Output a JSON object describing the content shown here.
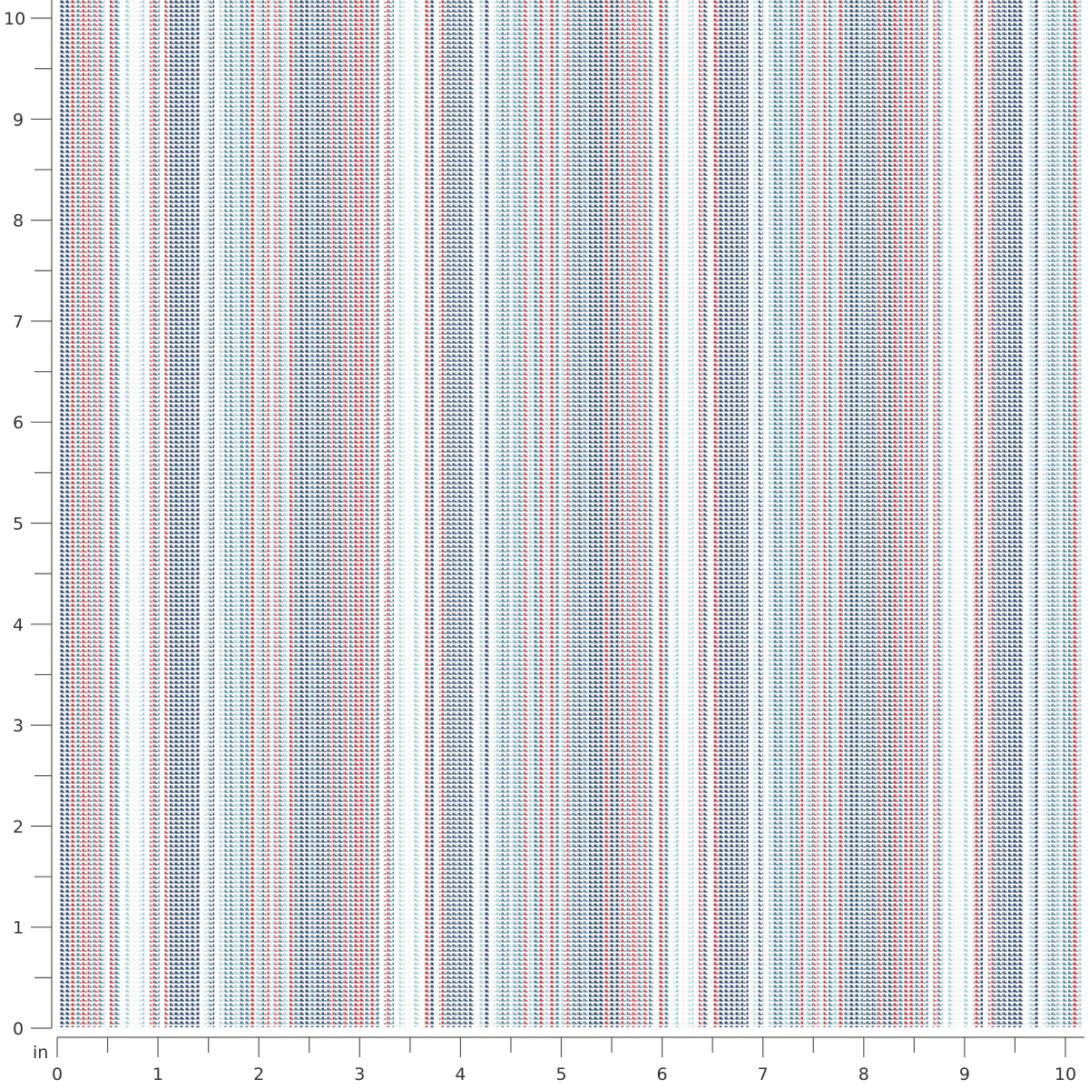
{
  "ruler": {
    "unit": "in",
    "x_labels": [
      "0",
      "1",
      "2",
      "3",
      "4",
      "5",
      "6",
      "7",
      "8",
      "9",
      "10"
    ],
    "y_labels": [
      "0",
      "1",
      "2",
      "3",
      "4",
      "5",
      "6",
      "7",
      "8",
      "9",
      "10"
    ]
  },
  "fabric": {
    "pattern": "vertical woven stripes",
    "colors": {
      "red": "#b5434a",
      "navy": "#2e4a6b",
      "teal": "#4f7f94",
      "light_blue": "#a9cdd6",
      "white": "#f4f6f6",
      "ground": "#e9eef0"
    }
  }
}
